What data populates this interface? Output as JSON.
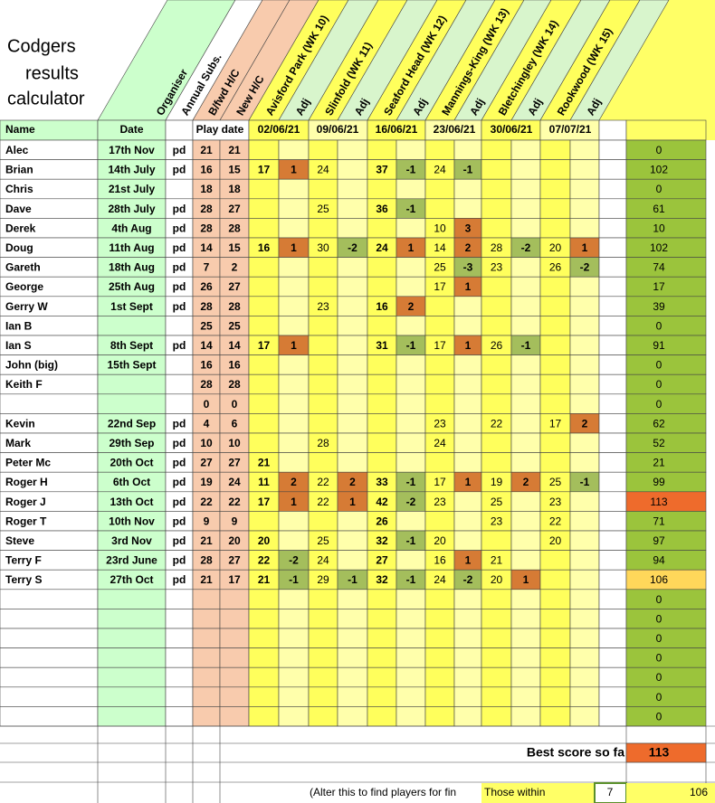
{
  "title": [
    "Codgers",
    "results",
    "calculator"
  ],
  "column_headers": [
    "Organiser",
    "Annual Subs.",
    "B/fwd H/C",
    "New H/C",
    "Avisford Park (WK 10)",
    "Adj",
    "Slinfold (WK 11)",
    "Adj",
    "Seaford Head (WK 12)",
    "Adj",
    "Mannings-King (WK 13)",
    "Adj",
    "Bletchingley (WK 14)",
    "Adj",
    "Rookwood (WK 15)",
    "Adj"
  ],
  "table": {
    "header": {
      "name": "Name",
      "date": "Date",
      "play_date": "Play date",
      "week_dates": [
        "02/06/21",
        "09/06/21",
        "16/06/21",
        "23/06/21",
        "30/06/21",
        "07/07/21"
      ]
    },
    "rows": [
      {
        "name": "Alec",
        "date": "17th Nov",
        "paid": "pd",
        "bfwd": 21,
        "new_hc": 21,
        "total": 0
      },
      {
        "name": "Brian",
        "date": "14th July",
        "paid": "pd",
        "bfwd": 16,
        "new_hc": 15,
        "scores": [
          17,
          1,
          24,
          null,
          37,
          -1,
          24,
          -1,
          null,
          null,
          null,
          null
        ],
        "total": 102
      },
      {
        "name": "Chris",
        "date": "21st July",
        "bfwd": 18,
        "new_hc": 18,
        "total": 0
      },
      {
        "name": "Dave",
        "date": "28th July",
        "paid": "pd",
        "bfwd": 28,
        "new_hc": 27,
        "scores": [
          null,
          null,
          25,
          null,
          36,
          -1,
          null,
          null,
          null,
          null,
          null,
          null
        ],
        "total": 61
      },
      {
        "name": "Derek",
        "date": "4th Aug",
        "paid": "pd",
        "bfwd": 28,
        "new_hc": 28,
        "scores": [
          null,
          null,
          null,
          null,
          null,
          null,
          10,
          3,
          null,
          null,
          null,
          null
        ],
        "total": 10
      },
      {
        "name": "Doug",
        "date": "11th Aug",
        "paid": "pd",
        "bfwd": 14,
        "new_hc": 15,
        "scores": [
          16,
          1,
          30,
          -2,
          24,
          1,
          14,
          2,
          28,
          -2,
          20,
          1
        ],
        "total": 102
      },
      {
        "name": "Gareth",
        "date": "18th Aug",
        "paid": "pd",
        "bfwd": 7,
        "new_hc": 2,
        "scores": [
          null,
          null,
          null,
          null,
          null,
          null,
          25,
          -3,
          23,
          null,
          26,
          -2
        ],
        "total": 74
      },
      {
        "name": "George",
        "date": "25th Aug",
        "paid": "pd",
        "bfwd": 26,
        "new_hc": 27,
        "scores": [
          null,
          null,
          null,
          null,
          null,
          null,
          17,
          1,
          null,
          null,
          null,
          null
        ],
        "total": 17
      },
      {
        "name": "Gerry W",
        "date": "1st Sept",
        "paid": "pd",
        "bfwd": 28,
        "new_hc": 28,
        "scores": [
          null,
          null,
          23,
          null,
          16,
          2,
          null,
          null,
          null,
          null,
          null,
          null
        ],
        "total": 39
      },
      {
        "name": "Ian B",
        "bfwd": 25,
        "new_hc": 25,
        "total": 0
      },
      {
        "name": "Ian S",
        "date": "8th Sept",
        "paid": "pd",
        "bfwd": 14,
        "new_hc": 14,
        "scores": [
          17,
          1,
          null,
          null,
          31,
          -1,
          17,
          1,
          26,
          -1,
          null,
          null
        ],
        "total": 91
      },
      {
        "name": "John (big)",
        "date": "15th Sept",
        "bfwd": 16,
        "new_hc": 16,
        "total": 0
      },
      {
        "name": "Keith F",
        "bfwd": 28,
        "new_hc": 28,
        "total": 0
      },
      {
        "bfwd": 0,
        "new_hc": 0,
        "total": 0
      },
      {
        "name": "Kevin",
        "date": "22nd Sep",
        "paid": "pd",
        "bfwd": 4,
        "new_hc": 6,
        "scores": [
          null,
          null,
          null,
          null,
          null,
          null,
          23,
          null,
          22,
          null,
          17,
          2
        ],
        "total": 62
      },
      {
        "name": "Mark",
        "date": "29th Sep",
        "paid": "pd",
        "bfwd": 10,
        "new_hc": 10,
        "scores": [
          null,
          null,
          28,
          null,
          null,
          null,
          24,
          null,
          null,
          null,
          null,
          null
        ],
        "total": 52
      },
      {
        "name": "Peter Mc",
        "date": "20th Oct",
        "paid": "pd",
        "bfwd": 27,
        "new_hc": 27,
        "scores": [
          21,
          null,
          null,
          null,
          null,
          null,
          null,
          null,
          null,
          null,
          null,
          null
        ],
        "total": 21
      },
      {
        "name": "Roger H",
        "date": "6th Oct",
        "paid": "pd",
        "bfwd": 19,
        "new_hc": 24,
        "scores": [
          11,
          2,
          22,
          2,
          33,
          -1,
          17,
          1,
          19,
          2,
          25,
          -1
        ],
        "total": 99
      },
      {
        "name": "Roger J",
        "date": "13th Oct",
        "paid": "pd",
        "bfwd": 22,
        "new_hc": 22,
        "scores": [
          17,
          1,
          22,
          1,
          42,
          -2,
          23,
          null,
          25,
          null,
          23,
          null
        ],
        "total": 113
      },
      {
        "name": "Roger T",
        "date": "10th Nov",
        "paid": "pd",
        "bfwd": 9,
        "new_hc": 9,
        "scores": [
          null,
          null,
          null,
          null,
          26,
          null,
          null,
          null,
          23,
          null,
          22,
          null
        ],
        "total": 71
      },
      {
        "name": "Steve",
        "date": "3rd Nov",
        "paid": "pd",
        "bfwd": 21,
        "new_hc": 20,
        "scores": [
          20,
          null,
          25,
          null,
          32,
          -1,
          20,
          null,
          null,
          null,
          20,
          null
        ],
        "total": 97
      },
      {
        "name": "Terry F",
        "date": "23rd June",
        "paid": "pd",
        "bfwd": 28,
        "new_hc": 27,
        "scores": [
          22,
          -2,
          24,
          null,
          27,
          null,
          16,
          1,
          21,
          null,
          null,
          null
        ],
        "total": 94
      },
      {
        "name": "Terry S",
        "date": "27th Oct",
        "paid": "pd",
        "bfwd": 21,
        "new_hc": 17,
        "scores": [
          21,
          -1,
          29,
          -1,
          32,
          -1,
          24,
          -2,
          20,
          1,
          null,
          null
        ],
        "total": 106
      },
      {
        "total": 0
      },
      {
        "total": 0
      },
      {
        "total": 0
      },
      {
        "total": 0
      },
      {
        "total": 0
      },
      {
        "total": 0
      },
      {
        "total": 0
      }
    ]
  },
  "best_score": {
    "label": "Best score so fa",
    "value": 113
  },
  "threshold": {
    "note": "(Alter this to find players for fin",
    "label": "Those within",
    "within": 7,
    "result": 106
  }
}
